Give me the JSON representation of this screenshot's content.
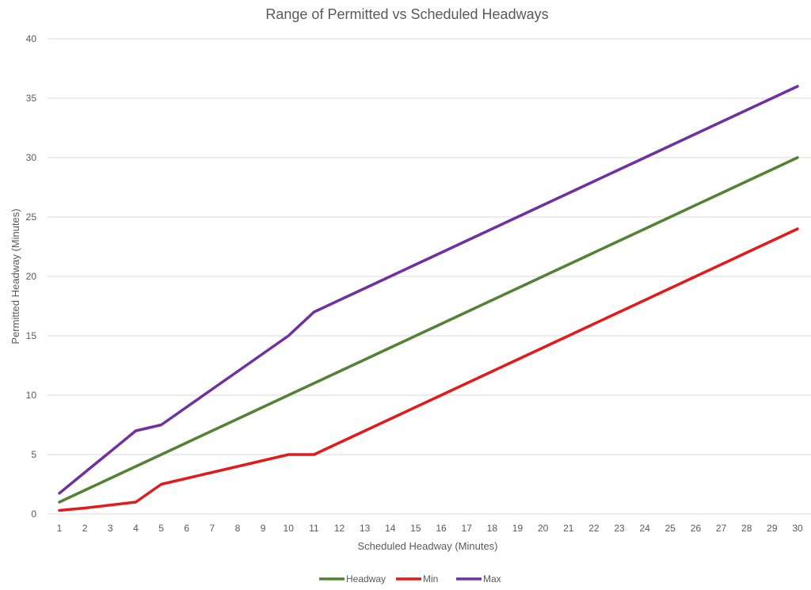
{
  "chart_data": {
    "type": "line",
    "title": "Range of Permitted vs Scheduled Headways",
    "xlabel": "Scheduled Headway (Minutes)",
    "ylabel": "Permitted Headway (Minutes)",
    "x": [
      1,
      2,
      3,
      4,
      5,
      6,
      7,
      8,
      9,
      10,
      11,
      12,
      13,
      14,
      15,
      16,
      17,
      18,
      19,
      20,
      21,
      22,
      23,
      24,
      25,
      26,
      27,
      28,
      29,
      30
    ],
    "ylim": [
      0,
      40
    ],
    "yticks": [
      0,
      5,
      10,
      15,
      20,
      25,
      30,
      35,
      40
    ],
    "grid": true,
    "legend_position": "bottom",
    "series": [
      {
        "name": "Headway",
        "color": "#548235",
        "values": [
          1,
          2,
          3,
          4,
          5,
          6,
          7,
          8,
          9,
          10,
          11,
          12,
          13,
          14,
          15,
          16,
          17,
          18,
          19,
          20,
          21,
          22,
          23,
          24,
          25,
          26,
          27,
          28,
          29,
          30
        ]
      },
      {
        "name": "Min",
        "color": "#e31a1c",
        "values": [
          0.3,
          0.5,
          0.75,
          1,
          2.5,
          3,
          3.5,
          4,
          4.5,
          5,
          5,
          6,
          7,
          8,
          9,
          10,
          11,
          12,
          13,
          14,
          15,
          16,
          17,
          18,
          19,
          20,
          21,
          22,
          23,
          24
        ]
      },
      {
        "name": "Max",
        "color": "#7030a0",
        "values": [
          1.75,
          3.5,
          5.25,
          7,
          7.5,
          9,
          10.5,
          12,
          13.5,
          15,
          17,
          18,
          19,
          20,
          21,
          22,
          23,
          24,
          25,
          26,
          27,
          28,
          29,
          30,
          31,
          32,
          33,
          34,
          35,
          36
        ]
      }
    ]
  }
}
